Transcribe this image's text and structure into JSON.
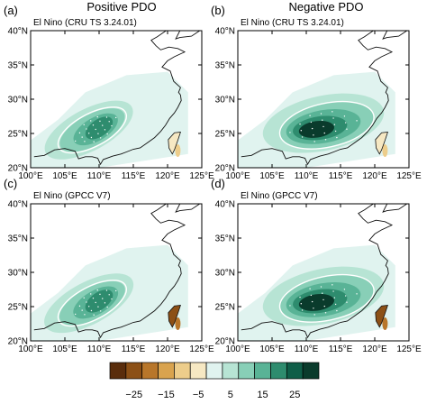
{
  "columns": [
    {
      "id": "positive",
      "title": "Positive PDO"
    },
    {
      "id": "negative",
      "title": "Negative PDO"
    }
  ],
  "panels": [
    {
      "letter": "(a)",
      "label": "El Nino (CRU TS 3.24.01)",
      "column": "positive",
      "intensity": 0.75
    },
    {
      "letter": "(b)",
      "label": "El Nino (CRU TS 3.24.01)",
      "column": "negative",
      "intensity": 1.0
    },
    {
      "letter": "(c)",
      "label": "El Nino (GPCC V7)",
      "column": "positive",
      "intensity": 0.8
    },
    {
      "letter": "(d)",
      "label": "El Nino (GPCC V7)",
      "column": "negative",
      "intensity": 1.0
    }
  ],
  "axes": {
    "x_ticks": [
      "100°E",
      "105°E",
      "110°E",
      "115°E",
      "120°E",
      "125°E"
    ],
    "y_ticks": [
      "20°N",
      "25°N",
      "30°N",
      "35°N",
      "40°N"
    ],
    "lon_range": [
      100,
      125
    ],
    "lat_range": [
      20,
      40
    ]
  },
  "colorbar": {
    "levels": [
      -30,
      -25,
      -20,
      -15,
      -10,
      -5,
      0,
      5,
      10,
      15,
      20,
      25,
      30
    ],
    "labels": [
      "−25",
      "−15",
      "−5",
      "5",
      "15",
      "25"
    ],
    "label_values": [
      -25,
      -15,
      -5,
      5,
      15,
      25
    ],
    "colors": [
      "#5a2d0c",
      "#8c5016",
      "#b8762a",
      "#d9a34e",
      "#edcd8b",
      "#f6e8c3",
      "#e0f3ef",
      "#b7e4d4",
      "#88cfb7",
      "#59b396",
      "#2e8c6e",
      "#0f5e48",
      "#0a3b2c"
    ]
  }
}
